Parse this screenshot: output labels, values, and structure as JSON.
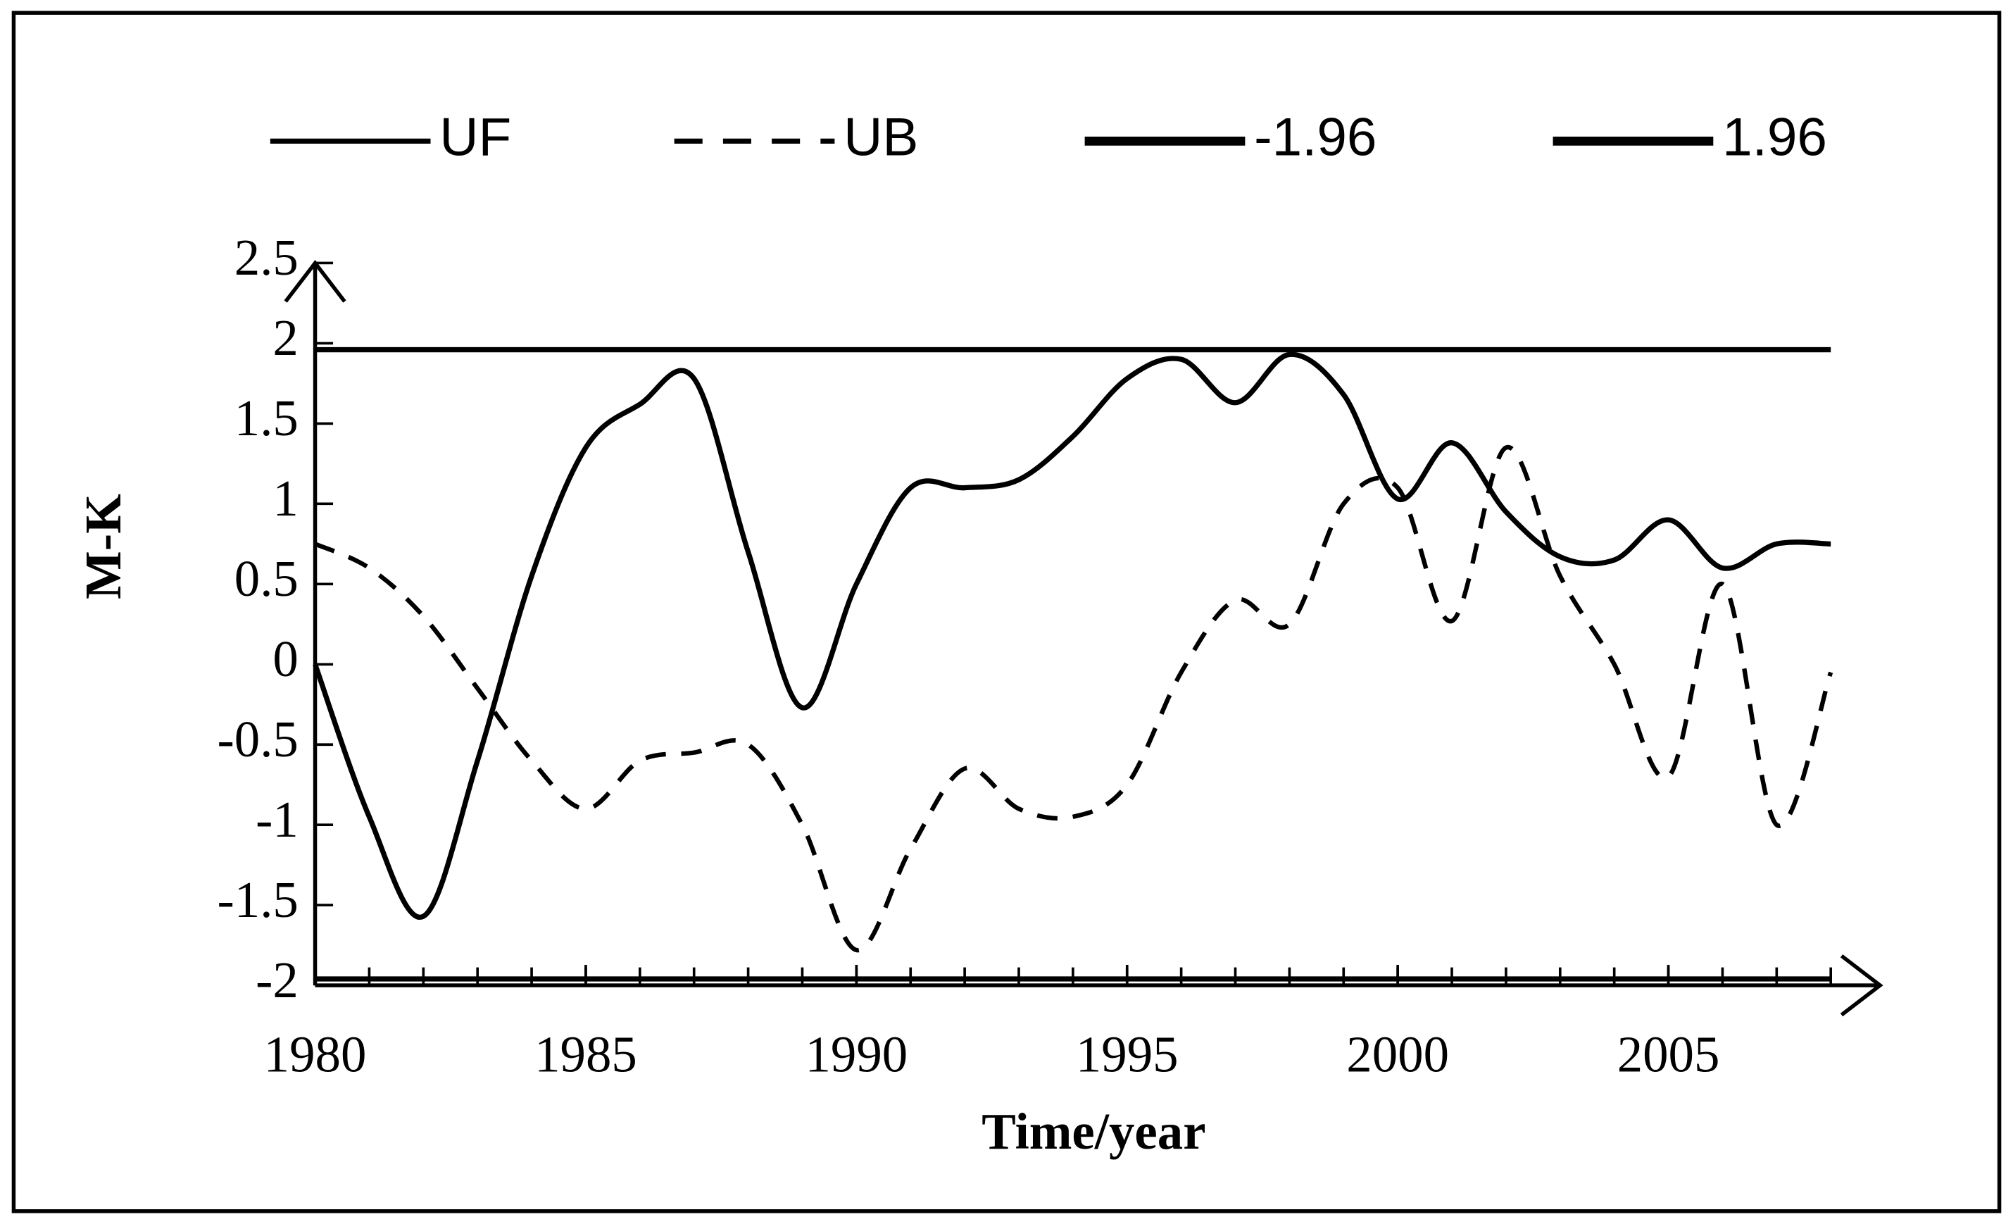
{
  "chart_data": {
    "type": "line",
    "x": [
      1980,
      1981,
      1982,
      1983,
      1984,
      1985,
      1986,
      1987,
      1988,
      1989,
      1990,
      1991,
      1992,
      1993,
      1994,
      1995,
      1996,
      1997,
      1998,
      1999,
      2000,
      2001,
      2002,
      2003,
      2004,
      2005,
      2006,
      2007,
      2008
    ],
    "series": [
      {
        "name": "UF",
        "color": "#000000",
        "dash": false,
        "values": [
          0,
          -0.95,
          -1.57,
          -0.6,
          0.55,
          1.35,
          1.62,
          1.78,
          0.7,
          -0.27,
          0.5,
          1.1,
          1.1,
          1.15,
          1.42,
          1.78,
          1.9,
          1.63,
          1.93,
          1.68,
          1.03,
          1.38,
          0.95,
          0.67,
          0.65,
          0.9,
          0.6,
          0.75,
          0.75
        ]
      },
      {
        "name": "UB",
        "color": "#000000",
        "dash": true,
        "values": [
          0.75,
          0.6,
          0.3,
          -0.15,
          -0.6,
          -0.9,
          -0.6,
          -0.55,
          -0.5,
          -1.0,
          -1.78,
          -1.15,
          -0.65,
          -0.9,
          -0.95,
          -0.75,
          -0.05,
          0.4,
          0.25,
          1.0,
          1.1,
          0.27,
          1.35,
          0.55,
          0.0,
          -0.7,
          0.5,
          -1.0,
          -0.05
        ]
      },
      {
        "name": "-1.96",
        "color": "#000000",
        "dash": false,
        "values": [
          -1.96,
          -1.96,
          -1.96,
          -1.96,
          -1.96,
          -1.96,
          -1.96,
          -1.96,
          -1.96,
          -1.96,
          -1.96,
          -1.96,
          -1.96,
          -1.96,
          -1.96,
          -1.96,
          -1.96,
          -1.96,
          -1.96,
          -1.96,
          -1.96,
          -1.96,
          -1.96,
          -1.96,
          -1.96,
          -1.96,
          -1.96,
          -1.96,
          -1.96
        ]
      },
      {
        "name": "1.96",
        "color": "#000000",
        "dash": false,
        "values": [
          1.96,
          1.96,
          1.96,
          1.96,
          1.96,
          1.96,
          1.96,
          1.96,
          1.96,
          1.96,
          1.96,
          1.96,
          1.96,
          1.96,
          1.96,
          1.96,
          1.96,
          1.96,
          1.96,
          1.96,
          1.96,
          1.96,
          1.96,
          1.96,
          1.96,
          1.96,
          1.96,
          1.96,
          1.96
        ]
      }
    ],
    "xlabel": "Time/year",
    "ylabel": "M-K",
    "xlim": [
      1980,
      2009
    ],
    "xticks": [
      1980,
      1985,
      1990,
      1995,
      2000,
      2005
    ],
    "ylim": [
      -2,
      2.5
    ],
    "yticks": [
      -2,
      -1.5,
      -1,
      -0.5,
      0,
      0.5,
      1,
      1.5,
      2,
      2.5
    ],
    "legend": "top",
    "grid": false
  }
}
